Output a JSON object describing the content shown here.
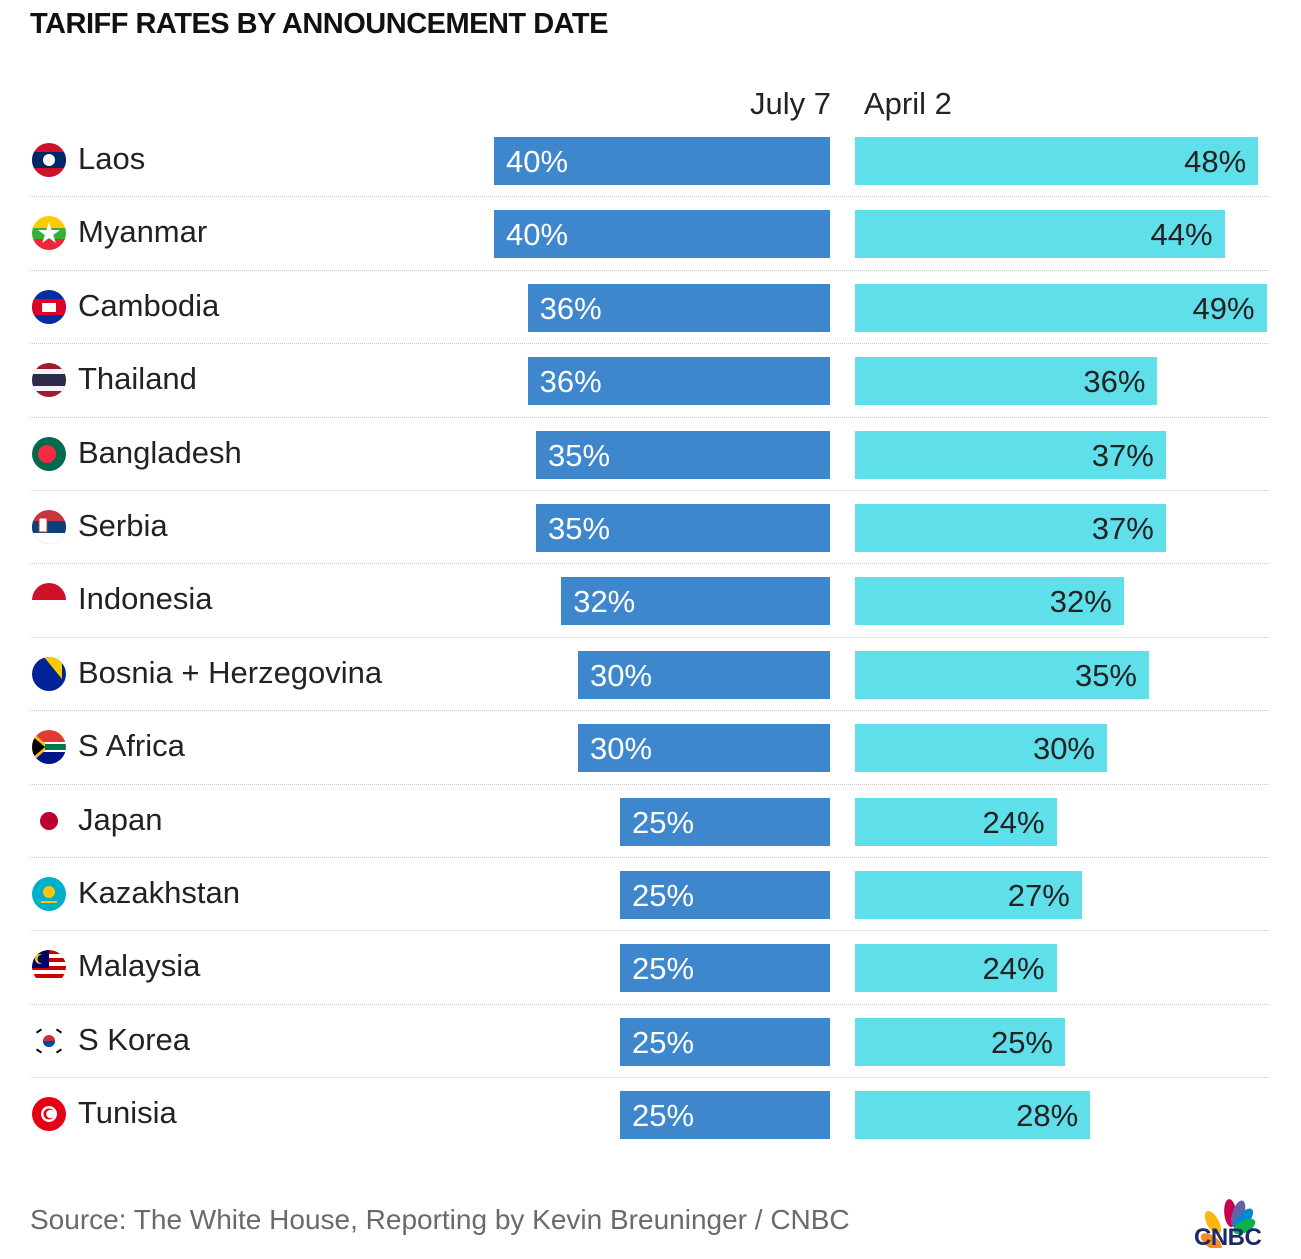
{
  "title": "TARIFF RATES BY ANNOUNCEMENT DATE",
  "columns": {
    "left": "July 7",
    "right": "April 2"
  },
  "source": "Source: The White House, Reporting by Kevin Breuninger / CNBC",
  "logo_text": "CNBC",
  "colors": {
    "july_bar": "#3e87cc",
    "april_bar": "#5fdfe9"
  },
  "chart_data": {
    "type": "bar",
    "title": "TARIFF RATES BY ANNOUNCEMENT DATE",
    "categories": [
      "Laos",
      "Myanmar",
      "Cambodia",
      "Thailand",
      "Bangladesh",
      "Serbia",
      "Indonesia",
      "Bosnia + Herzegovina",
      "S Africa",
      "Japan",
      "Kazakhstan",
      "Malaysia",
      "S Korea",
      "Tunisia"
    ],
    "series": [
      {
        "name": "July 7",
        "values": [
          40,
          40,
          36,
          36,
          35,
          35,
          32,
          30,
          30,
          25,
          25,
          25,
          25,
          25
        ],
        "labels": [
          "40%",
          "40%",
          "36%",
          "36%",
          "35%",
          "35%",
          "32%",
          "30%",
          "30%",
          "25%",
          "25%",
          "25%",
          "25%",
          "25%"
        ]
      },
      {
        "name": "April 2",
        "values": [
          48,
          44,
          49,
          36,
          37,
          37,
          32,
          35,
          30,
          24,
          27,
          24,
          25,
          28
        ],
        "labels": [
          "48%",
          "44%",
          "49%",
          "36%",
          "37%",
          "37%",
          "32%",
          "35%",
          "30%",
          "24%",
          "27%",
          "24%",
          "25%",
          "28%"
        ]
      }
    ],
    "flags": [
      "laos-flag-icon",
      "myanmar-flag-icon",
      "cambodia-flag-icon",
      "thailand-flag-icon",
      "bangladesh-flag-icon",
      "serbia-flag-icon",
      "indonesia-flag-icon",
      "bosnia-flag-icon",
      "south-africa-flag-icon",
      "japan-flag-icon",
      "kazakhstan-flag-icon",
      "malaysia-flag-icon",
      "south-korea-flag-icon",
      "tunisia-flag-icon"
    ],
    "legend": "top",
    "grid": false
  }
}
